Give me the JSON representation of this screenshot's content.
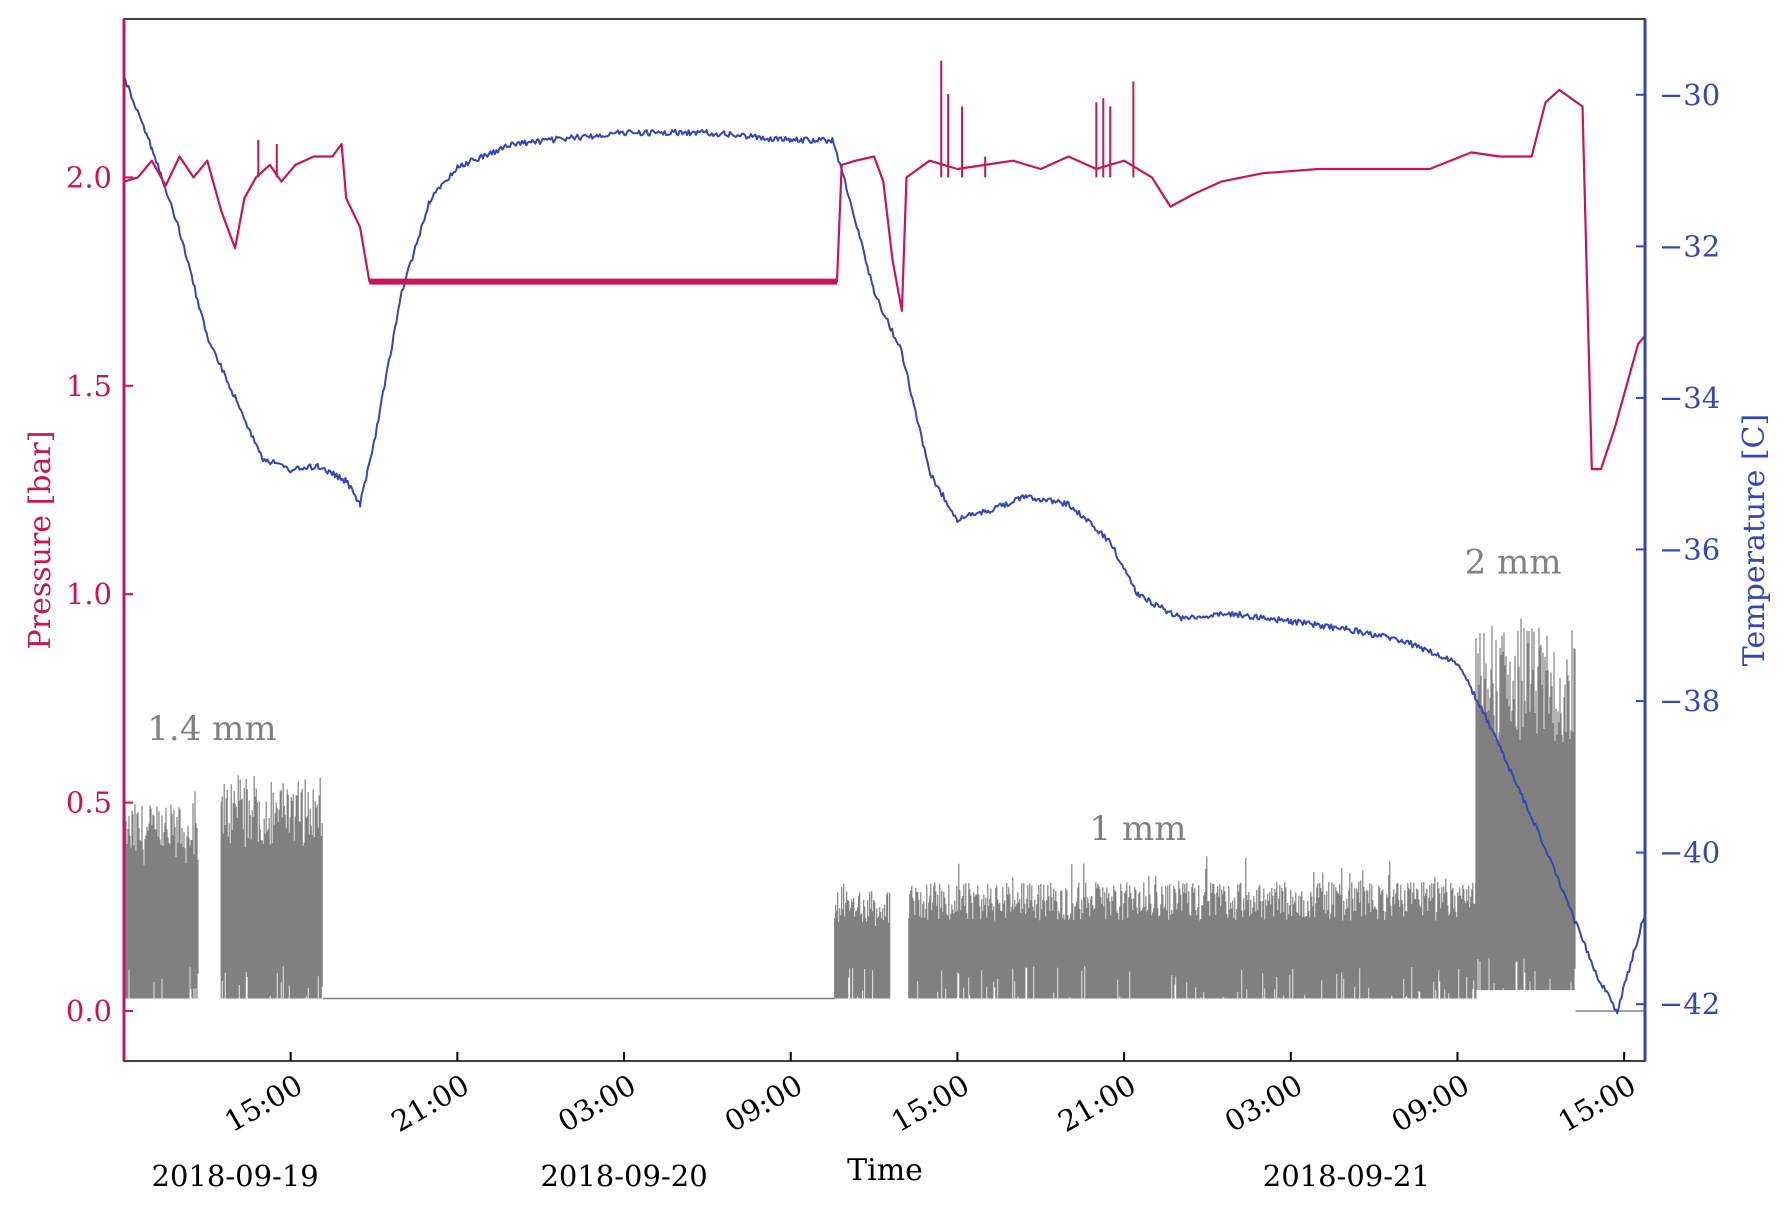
{
  "chart_data": {
    "type": "line",
    "xlabel": "Time",
    "x_range": [
      "2018-09-19 09:00",
      "2018-09-21 15:45"
    ],
    "x_ticks": [
      {
        "t": "2018-09-19 15:00",
        "label": "15:00"
      },
      {
        "t": "2018-09-19 21:00",
        "label": "21:00"
      },
      {
        "t": "2018-09-20 03:00",
        "label": "03:00"
      },
      {
        "t": "2018-09-20 09:00",
        "label": "09:00"
      },
      {
        "t": "2018-09-20 15:00",
        "label": "15:00"
      },
      {
        "t": "2018-09-20 21:00",
        "label": "21:00"
      },
      {
        "t": "2018-09-21 03:00",
        "label": "03:00"
      },
      {
        "t": "2018-09-21 09:00",
        "label": "09:00"
      },
      {
        "t": "2018-09-21 15:00",
        "label": "15:00"
      }
    ],
    "date_labels": [
      {
        "t": "2018-09-19 13:00",
        "label": "2018-09-19"
      },
      {
        "t": "2018-09-20 03:00",
        "label": "2018-09-20"
      },
      {
        "t": "2018-09-21 05:00",
        "label": "2018-09-21"
      }
    ],
    "y_left": {
      "label": "Pressure [bar]",
      "range": [
        -0.12,
        2.38
      ],
      "ticks": [
        0.0,
        0.5,
        1.0,
        1.5,
        2.0
      ],
      "tick_labels": [
        "0.0",
        "0.5",
        "1.0",
        "1.5",
        "2.0"
      ],
      "color": "#c8145a"
    },
    "y_right": {
      "label": "Temperature [C]",
      "range": [
        -42.75,
        -29.0
      ],
      "ticks": [
        -42,
        -40,
        -38,
        -36,
        -34,
        -32,
        -30
      ],
      "tick_labels": [
        "−42",
        "−40",
        "−38",
        "−36",
        "−34",
        "−32",
        "−30"
      ],
      "color": "#3646b4"
    },
    "grid": false,
    "series": [
      {
        "name": "Pressure",
        "axis": "left",
        "color": "#c8145a",
        "points": [
          [
            "2018-09-19 09:00",
            1.99
          ],
          [
            "2018-09-19 09:30",
            2.0
          ],
          [
            "2018-09-19 10:00",
            2.04
          ],
          [
            "2018-09-19 10:30",
            1.98
          ],
          [
            "2018-09-19 11:00",
            2.05
          ],
          [
            "2018-09-19 11:30",
            2.0
          ],
          [
            "2018-09-19 12:00",
            2.04
          ],
          [
            "2018-09-19 12:30",
            1.92
          ],
          [
            "2018-09-19 13:00",
            1.83
          ],
          [
            "2018-09-19 13:20",
            1.95
          ],
          [
            "2018-09-19 13:45",
            2.0
          ],
          [
            "2018-09-19 14:15",
            2.03
          ],
          [
            "2018-09-19 14:40",
            1.99
          ],
          [
            "2018-09-19 15:10",
            2.03
          ],
          [
            "2018-09-19 15:50",
            2.05
          ],
          [
            "2018-09-19 16:30",
            2.05
          ],
          [
            "2018-09-19 16:50",
            2.08
          ],
          [
            "2018-09-19 17:00",
            1.95
          ],
          [
            "2018-09-19 17:30",
            1.88
          ],
          [
            "2018-09-19 17:50",
            1.75
          ],
          [
            "2018-09-19 20:00",
            1.75
          ],
          [
            "2018-09-20 03:00",
            1.75
          ],
          [
            "2018-09-20 10:40",
            1.75
          ],
          [
            "2018-09-20 10:50",
            2.03
          ],
          [
            "2018-09-20 11:20",
            2.04
          ],
          [
            "2018-09-20 12:00",
            2.05
          ],
          [
            "2018-09-20 12:20",
            1.99
          ],
          [
            "2018-09-20 12:40",
            1.8
          ],
          [
            "2018-09-20 13:00",
            1.68
          ],
          [
            "2018-09-20 13:10",
            2.0
          ],
          [
            "2018-09-20 14:00",
            2.04
          ],
          [
            "2018-09-20 15:00",
            2.02
          ],
          [
            "2018-09-20 16:00",
            2.03
          ],
          [
            "2018-09-20 17:00",
            2.04
          ],
          [
            "2018-09-20 18:00",
            2.02
          ],
          [
            "2018-09-20 19:00",
            2.05
          ],
          [
            "2018-09-20 20:00",
            2.02
          ],
          [
            "2018-09-20 21:00",
            2.04
          ],
          [
            "2018-09-20 22:00",
            2.0
          ],
          [
            "2018-09-20 22:40",
            1.93
          ],
          [
            "2018-09-20 23:30",
            1.96
          ],
          [
            "2018-09-21 00:30",
            1.99
          ],
          [
            "2018-09-21 02:00",
            2.01
          ],
          [
            "2018-09-21 04:00",
            2.02
          ],
          [
            "2018-09-21 06:00",
            2.02
          ],
          [
            "2018-09-21 08:00",
            2.02
          ],
          [
            "2018-09-21 09:30",
            2.06
          ],
          [
            "2018-09-21 10:30",
            2.05
          ],
          [
            "2018-09-21 11:40",
            2.05
          ],
          [
            "2018-09-21 12:10",
            2.18
          ],
          [
            "2018-09-21 12:40",
            2.21
          ],
          [
            "2018-09-21 13:30",
            2.17
          ],
          [
            "2018-09-21 13:50",
            1.3
          ],
          [
            "2018-09-21 14:10",
            1.3
          ],
          [
            "2018-09-21 14:40",
            1.4
          ],
          [
            "2018-09-21 15:30",
            1.6
          ],
          [
            "2018-09-21 15:45",
            1.62
          ]
        ]
      },
      {
        "name": "Temperature",
        "axis": "right",
        "color": "#3646b4",
        "points": [
          [
            "2018-09-19 09:00",
            -29.75
          ],
          [
            "2018-09-19 10:00",
            -30.7
          ],
          [
            "2018-09-19 11:00",
            -31.8
          ],
          [
            "2018-09-19 12:00",
            -33.2
          ],
          [
            "2018-09-19 13:00",
            -34.0
          ],
          [
            "2018-09-19 14:00",
            -34.8
          ],
          [
            "2018-09-19 15:00",
            -34.95
          ],
          [
            "2018-09-19 16:00",
            -34.9
          ],
          [
            "2018-09-19 17:00",
            -35.1
          ],
          [
            "2018-09-19 17:30",
            -35.4
          ],
          [
            "2018-09-19 18:00",
            -34.6
          ],
          [
            "2018-09-19 19:00",
            -32.6
          ],
          [
            "2018-09-19 20:00",
            -31.4
          ],
          [
            "2018-09-19 21:00",
            -30.95
          ],
          [
            "2018-09-19 23:00",
            -30.65
          ],
          [
            "2018-09-20 03:00",
            -30.5
          ],
          [
            "2018-09-20 06:00",
            -30.5
          ],
          [
            "2018-09-20 09:00",
            -30.6
          ],
          [
            "2018-09-20 10:30",
            -30.6
          ],
          [
            "2018-09-20 11:00",
            -31.2
          ],
          [
            "2018-09-20 12:00",
            -32.6
          ],
          [
            "2018-09-20 13:00",
            -33.4
          ],
          [
            "2018-09-20 14:00",
            -35.0
          ],
          [
            "2018-09-20 15:00",
            -35.6
          ],
          [
            "2018-09-20 16:00",
            -35.5
          ],
          [
            "2018-09-20 17:30",
            -35.3
          ],
          [
            "2018-09-20 19:00",
            -35.4
          ],
          [
            "2018-09-20 20:30",
            -35.9
          ],
          [
            "2018-09-20 21:30",
            -36.6
          ],
          [
            "2018-09-20 23:00",
            -36.9
          ],
          [
            "2018-09-21 01:00",
            -36.85
          ],
          [
            "2018-09-21 03:00",
            -36.95
          ],
          [
            "2018-09-21 05:00",
            -37.05
          ],
          [
            "2018-09-21 07:00",
            -37.2
          ],
          [
            "2018-09-21 09:00",
            -37.5
          ],
          [
            "2018-09-21 10:00",
            -38.2
          ],
          [
            "2018-09-21 11:00",
            -39.0
          ],
          [
            "2018-09-21 12:00",
            -39.8
          ],
          [
            "2018-09-21 13:00",
            -40.7
          ],
          [
            "2018-09-21 14:00",
            -41.6
          ],
          [
            "2018-09-21 14:45",
            -42.1
          ],
          [
            "2018-09-21 15:45",
            -40.8
          ]
        ]
      },
      {
        "name": "Signal",
        "axis": "left",
        "color": "#808080",
        "segments": [
          {
            "start": "2018-09-19 09:00",
            "end": "2018-09-19 11:40",
            "base": 0.03,
            "level": 0.5,
            "peak": 0.57
          },
          {
            "start": "2018-09-19 12:30",
            "end": "2018-09-19 16:10",
            "base": 0.03,
            "level": 0.56,
            "peak": 0.61
          },
          {
            "start": "2018-09-20 10:35",
            "end": "2018-09-20 12:35",
            "base": 0.03,
            "level": 0.29,
            "peak": 0.31
          },
          {
            "start": "2018-09-20 13:15",
            "end": "2018-09-21 09:40",
            "base": 0.03,
            "level": 0.31,
            "peak": 0.39
          },
          {
            "start": "2018-09-21 09:40",
            "end": "2018-09-21 13:15",
            "base": 0.05,
            "level": 0.92,
            "peak": 1.0
          }
        ],
        "baseline": [
          [
            "2018-09-19 16:10",
            0.03
          ],
          [
            "2018-09-20 10:35",
            0.03
          ],
          [
            "2018-09-21 13:15",
            0.0
          ],
          [
            "2018-09-21 15:45",
            0.0
          ]
        ]
      }
    ],
    "annotations": [
      {
        "text": "1.4 mm",
        "t": "2018-09-19 12:10",
        "y": 0.65
      },
      {
        "text": "1 mm",
        "t": "2018-09-20 21:30",
        "y": 0.41
      },
      {
        "text": "2 mm",
        "t": "2018-09-21 11:00",
        "y": 1.05
      }
    ],
    "legend": "none"
  }
}
